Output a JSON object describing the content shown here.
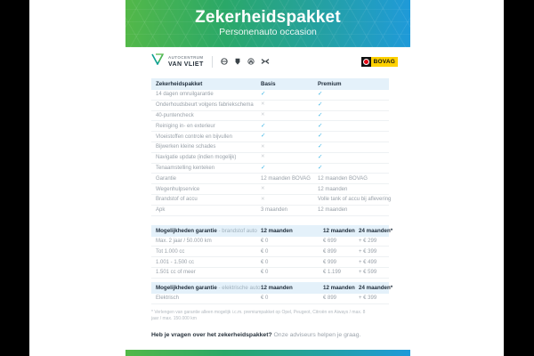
{
  "colors": {
    "gradient_start": "#53b848",
    "gradient_end": "#1f9ad9",
    "check_accent": "#3cb4e5",
    "table_header_band": "#e4f1fa",
    "bovag_yellow": "#ffd100",
    "bovag_red": "#e30613"
  },
  "header": {
    "title": "Zekerheidspakket",
    "subtitle": "Personenauto occasion"
  },
  "brandbar": {
    "dealer_name_top": "AUTOCENTRUM",
    "dealer_name_bottom": "VAN VLIET",
    "brands": [
      "Opel",
      "Peugeot",
      "Citroën",
      "Aiways"
    ],
    "bovag_label": "BOVAG"
  },
  "package_table": {
    "col_label": "Zekerheidspakket",
    "col_basis": "Basis",
    "col_premium": "Premium",
    "rows": [
      [
        "14 dagen omruilgarantie",
        "✓",
        "✓"
      ],
      [
        "Onderhoudsbeurt volgens fabriekschema",
        "✕",
        "✓"
      ],
      [
        "40-puntencheck",
        "✕",
        "✓"
      ],
      [
        "Reiniging in- en exterieur",
        "✓",
        "✓"
      ],
      [
        "Vloeistoffen controle en bijvullen",
        "✓",
        "✓"
      ],
      [
        "Bijwerken kleine schades",
        "✕",
        "✓"
      ],
      [
        "Navigatie update (indien mogelijk)",
        "✕",
        "✓"
      ],
      [
        "Tenaamstelling kenteken",
        "✓",
        "✓"
      ],
      [
        "Garantie",
        "12 maanden BOVAG",
        "12 maanden BOVAG"
      ],
      [
        "Wegenhulpservice",
        "✕",
        "12 maanden"
      ],
      [
        "Brandstof of accu",
        "✕",
        "Volle tank of accu bij aflevering"
      ],
      [
        "Apk",
        "3 maanden",
        "12 maanden"
      ]
    ]
  },
  "fuel_table": {
    "title_bold": "Mogelijkheden garantie",
    "title_light": " - brandstof auto",
    "cols": [
      "12 maanden",
      "12 maanden",
      "24 maanden*"
    ],
    "rows": [
      [
        "Max. 2 jaar / 50.000 km",
        "€ 0",
        "€ 699",
        "+ € 299"
      ],
      [
        "Tot 1.000 cc",
        "€ 0",
        "€ 899",
        "+ € 399"
      ],
      [
        "1.001 - 1.500 cc",
        "€ 0",
        "€ 999",
        "+ € 499"
      ],
      [
        "1.501 cc of meer",
        "€ 0",
        "€ 1.199",
        "+ € 599"
      ]
    ]
  },
  "electric_table": {
    "title_bold": "Mogelijkheden garantie",
    "title_light": " - elektrische auto",
    "cols": [
      "12 maanden",
      "12 maanden",
      "24 maanden*"
    ],
    "rows": [
      [
        "Elektrisch",
        "€ 0",
        "€ 899",
        "+ € 399"
      ]
    ]
  },
  "footnote": "* Verlengen van garantie alleen mogelijk i.c.m. premiumpakket op Opel, Peugeot, Citroën en Aiways / max. 8 jaar / max. 150.000 km",
  "footer": {
    "question": "Heb je vragen over het zekerheidspakket?",
    "answer": " Onze adviseurs helpen je graag."
  }
}
